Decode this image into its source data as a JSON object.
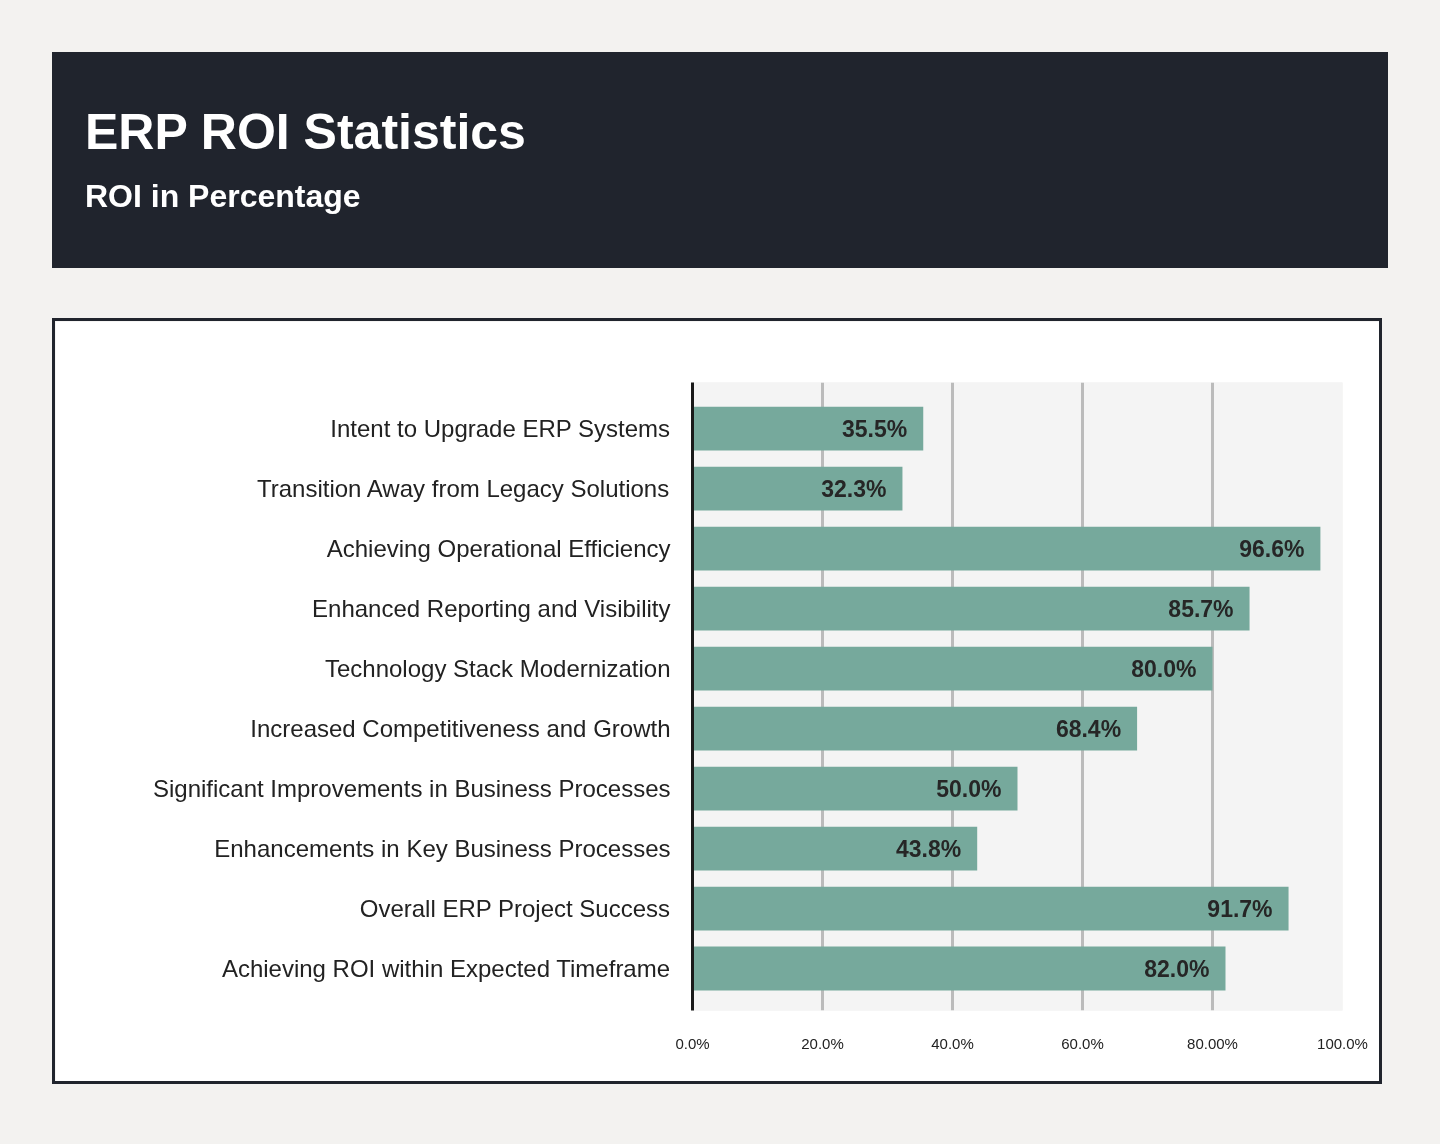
{
  "chart_data": {
    "type": "bar",
    "orientation": "horizontal",
    "title": "ERP ROI Statistics",
    "subtitle": "ROI in Percentage",
    "categories": [
      "Intent to Upgrade ERP Systems",
      "Transition Away from Legacy Solutions",
      "Achieving Operational Efficiency",
      "Enhanced Reporting and Visibility",
      "Technology Stack Modernization",
      "Increased Competitiveness and Growth",
      "Significant Improvements in Business Processes",
      "Enhancements in Key Business Processes",
      "Overall ERP Project Success",
      "Achieving ROI within Expected Timeframe"
    ],
    "values": [
      35.5,
      32.3,
      96.6,
      85.7,
      80.0,
      68.4,
      50.0,
      43.8,
      91.7,
      82.0
    ],
    "value_labels": [
      "35.5%",
      "32.3%",
      "96.6%",
      "85.7%",
      "80.0%",
      "68.4%",
      "50.0%",
      "43.8%",
      "91.7%",
      "82.0%"
    ],
    "color": "#76a99c",
    "xlim": [
      0,
      100
    ],
    "xticks": [
      {
        "value": 0,
        "label": "0.0%"
      },
      {
        "value": 20,
        "label": "20.0%"
      },
      {
        "value": 40,
        "label": "40.0%"
      },
      {
        "value": 60,
        "label": "60.0%"
      },
      {
        "value": 80,
        "label": "80.00%"
      },
      {
        "value": 100,
        "label": "100.0%"
      }
    ],
    "grid": "x"
  }
}
